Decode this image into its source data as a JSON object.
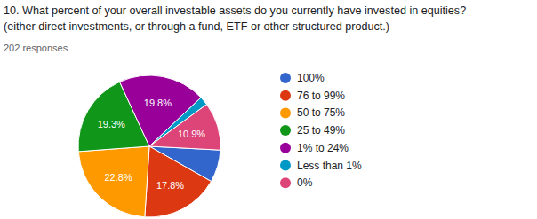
{
  "chart_data": {
    "type": "pie",
    "title": [
      "10. What percent of your overall investable assets do you currently have invested in equities?",
      "(either direct investments, or through a fund, ETF or other structured product.)"
    ],
    "subtitle": "202 responses",
    "categories": [
      "100%",
      "76 to 99%",
      "50 to 75%",
      "25 to 49%",
      "1% to 24%",
      "Less than 1%",
      "0%"
    ],
    "values": [
      7.4,
      17.8,
      22.8,
      19.3,
      19.8,
      2.0,
      10.9
    ],
    "value_labels": [
      null,
      "17.8%",
      "22.8%",
      "19.3%",
      "19.8%",
      null,
      "10.9%"
    ],
    "colors": [
      "#3366cc",
      "#dc3912",
      "#ff9900",
      "#109618",
      "#990099",
      "#0099c6",
      "#dd4477"
    ],
    "data_labels": true,
    "legend": "right"
  }
}
